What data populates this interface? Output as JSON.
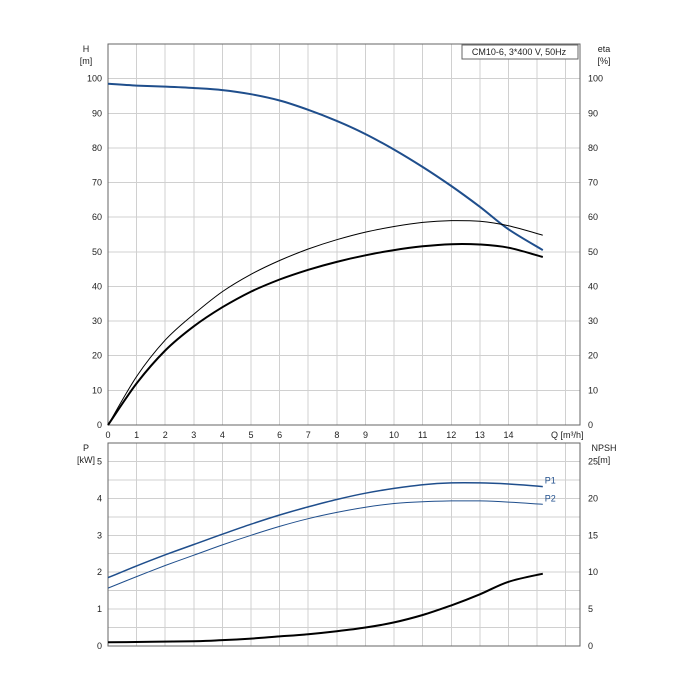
{
  "chart_data": [
    {
      "type": "line",
      "title": "CM10-6, 3*400 V, 50Hz",
      "xlabel": "Q [m³/h]",
      "xlim": [
        0,
        16.5
      ],
      "x_ticks": [
        0,
        1,
        2,
        3,
        4,
        5,
        6,
        7,
        8,
        9,
        10,
        11,
        12,
        13,
        14
      ],
      "ylabel_left": [
        "H",
        "[m]"
      ],
      "ylim_left": [
        0,
        110
      ],
      "y_ticks_left": [
        0,
        10,
        20,
        30,
        40,
        50,
        60,
        70,
        80,
        90,
        100
      ],
      "ylabel_right": [
        "eta",
        "[%]"
      ],
      "ylim_right": [
        0,
        110
      ],
      "y_ticks_right": [
        0,
        10,
        20,
        30,
        40,
        50,
        60,
        70,
        80,
        90,
        100
      ],
      "grid": true,
      "series": [
        {
          "id": "head",
          "axis": "left",
          "color": "#1f4e8c",
          "width": 2,
          "x": [
            0,
            1,
            2,
            3,
            4,
            5,
            6,
            7,
            8,
            9,
            10,
            11,
            12,
            13,
            14,
            15.2
          ],
          "y": [
            98.5,
            98,
            97.7,
            97.3,
            96.7,
            95.5,
            93.7,
            91,
            87.8,
            84,
            79.5,
            74.5,
            69,
            63,
            56.5,
            50.5
          ]
        },
        {
          "id": "eta-pump",
          "axis": "right",
          "color": "#000000",
          "width": 1,
          "x": [
            0,
            1,
            2,
            3,
            4,
            5,
            6,
            7,
            8,
            9,
            10,
            11,
            12,
            13,
            14,
            15.2
          ],
          "y": [
            0,
            14,
            24.5,
            32,
            38.5,
            43.5,
            47.5,
            50.8,
            53.5,
            55.7,
            57.3,
            58.5,
            59,
            58.8,
            57.5,
            54.8
          ]
        },
        {
          "id": "eta-total",
          "axis": "right",
          "color": "#000000",
          "width": 2,
          "x": [
            0,
            1,
            2,
            3,
            4,
            5,
            6,
            7,
            8,
            9,
            10,
            11,
            12,
            13,
            14,
            15.2
          ],
          "y": [
            0,
            12,
            21.5,
            28.5,
            34,
            38.5,
            42,
            44.8,
            47.1,
            49,
            50.5,
            51.6,
            52.2,
            52.1,
            51.2,
            48.5
          ]
        }
      ]
    },
    {
      "type": "line",
      "xlim": [
        0,
        16.5
      ],
      "ylabel_left": [
        "P",
        "[kW]"
      ],
      "ylim_left": [
        0,
        5.5
      ],
      "y_ticks_left": [
        0,
        1,
        2,
        3,
        4,
        5
      ],
      "ylabel_right": [
        "NPSH",
        "[m]"
      ],
      "ylim_right": [
        0,
        27.5
      ],
      "y_ticks_right": [
        0,
        5,
        10,
        15,
        20,
        25
      ],
      "grid": true,
      "series": [
        {
          "id": "P1",
          "name": "P1",
          "axis": "left",
          "color": "#1f4e8c",
          "width": 1.5,
          "x": [
            0,
            1,
            2,
            3,
            4,
            5,
            6,
            7,
            8,
            9,
            10,
            11,
            12,
            13,
            14,
            15.2
          ],
          "y": [
            1.85,
            2.17,
            2.47,
            2.75,
            3.03,
            3.3,
            3.55,
            3.77,
            3.97,
            4.14,
            4.27,
            4.37,
            4.42,
            4.42,
            4.39,
            4.32
          ]
        },
        {
          "id": "P2",
          "name": "P2",
          "axis": "left",
          "color": "#1f4e8c",
          "width": 1,
          "x": [
            0,
            1,
            2,
            3,
            4,
            5,
            6,
            7,
            8,
            9,
            10,
            11,
            12,
            13,
            14,
            15.2
          ],
          "y": [
            1.57,
            1.88,
            2.18,
            2.46,
            2.74,
            3.0,
            3.24,
            3.45,
            3.62,
            3.76,
            3.86,
            3.91,
            3.93,
            3.93,
            3.9,
            3.84
          ]
        },
        {
          "id": "NPSH",
          "axis": "right",
          "color": "#000000",
          "width": 2,
          "x": [
            0,
            3,
            4,
            5,
            6,
            7,
            8,
            9,
            10,
            11,
            12,
            13,
            14,
            15.2
          ],
          "y": [
            0.5,
            0.65,
            0.8,
            1.0,
            1.3,
            1.6,
            2.0,
            2.5,
            3.2,
            4.2,
            5.5,
            7.0,
            8.7,
            9.8
          ]
        }
      ]
    }
  ]
}
